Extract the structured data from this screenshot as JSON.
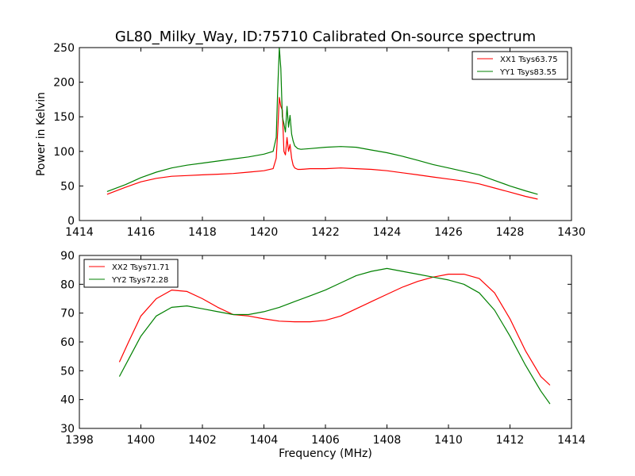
{
  "chart_data": [
    {
      "type": "line",
      "title": "GL80_Milky_Way, ID:75710 Calibrated On-source spectrum",
      "xlabel": "",
      "ylabel": "Power in Kelvin",
      "xlim": [
        1414,
        1430
      ],
      "ylim": [
        0,
        250
      ],
      "xticks": [
        "1414",
        "1416",
        "1418",
        "1420",
        "1422",
        "1424",
        "1426",
        "1428",
        "1430"
      ],
      "yticks": [
        "0",
        "50",
        "100",
        "150",
        "200",
        "250"
      ],
      "legend_position": "top-right",
      "series": [
        {
          "name": "XX1 Tsys63.75",
          "color": "#ff0000",
          "x": [
            1414.9,
            1415.5,
            1416.0,
            1416.5,
            1417.0,
            1417.5,
            1418.0,
            1418.5,
            1419.0,
            1419.5,
            1420.0,
            1420.3,
            1420.4,
            1420.45,
            1420.5,
            1420.55,
            1420.6,
            1420.65,
            1420.7,
            1420.75,
            1420.8,
            1420.85,
            1420.9,
            1420.95,
            1421.0,
            1421.1,
            1421.2,
            1421.5,
            1422.0,
            1422.5,
            1423.0,
            1423.5,
            1424.0,
            1424.5,
            1425.0,
            1425.5,
            1426.0,
            1426.5,
            1427.0,
            1427.5,
            1428.0,
            1428.5,
            1428.9
          ],
          "y": [
            38,
            48,
            56,
            61,
            64,
            65,
            66,
            67,
            68,
            70,
            72,
            75,
            90,
            130,
            178,
            165,
            160,
            100,
            95,
            120,
            100,
            110,
            90,
            80,
            76,
            74,
            74,
            75,
            75,
            76,
            75,
            74,
            72,
            69,
            66,
            63,
            60,
            57,
            53,
            47,
            41,
            35,
            31
          ]
        },
        {
          "name": "YY1 Tsys83.55",
          "color": "#008000",
          "x": [
            1414.9,
            1415.5,
            1416.0,
            1416.5,
            1417.0,
            1417.5,
            1418.0,
            1418.5,
            1419.0,
            1419.5,
            1420.0,
            1420.3,
            1420.4,
            1420.45,
            1420.5,
            1420.55,
            1420.6,
            1420.65,
            1420.7,
            1420.75,
            1420.8,
            1420.85,
            1420.9,
            1420.95,
            1421.0,
            1421.1,
            1421.2,
            1421.5,
            1422.0,
            1422.5,
            1423.0,
            1423.5,
            1424.0,
            1424.5,
            1425.0,
            1425.5,
            1426.0,
            1426.5,
            1427.0,
            1427.5,
            1428.0,
            1428.5,
            1428.9
          ],
          "y": [
            42,
            52,
            62,
            70,
            76,
            80,
            83,
            86,
            89,
            92,
            96,
            100,
            120,
            190,
            250,
            220,
            150,
            140,
            128,
            165,
            135,
            152,
            125,
            115,
            108,
            104,
            103,
            104,
            106,
            107,
            106,
            102,
            98,
            93,
            87,
            81,
            76,
            71,
            66,
            58,
            50,
            43,
            38
          ]
        }
      ]
    },
    {
      "type": "line",
      "title": "",
      "xlabel": "Frequency (MHz)",
      "ylabel": "",
      "xlim": [
        1398,
        1414
      ],
      "ylim": [
        30,
        90
      ],
      "xticks": [
        "1398",
        "1400",
        "1402",
        "1404",
        "1406",
        "1408",
        "1410",
        "1412",
        "1414"
      ],
      "yticks": [
        "30",
        "40",
        "50",
        "60",
        "70",
        "80",
        "90"
      ],
      "legend_position": "top-left",
      "series": [
        {
          "name": "XX2 Tsys71.71",
          "color": "#ff0000",
          "x": [
            1399.3,
            1399.6,
            1400.0,
            1400.5,
            1401.0,
            1401.5,
            1402.0,
            1402.5,
            1403.0,
            1403.5,
            1404.0,
            1404.5,
            1405.0,
            1405.5,
            1406.0,
            1406.5,
            1407.0,
            1407.5,
            1408.0,
            1408.5,
            1409.0,
            1409.5,
            1410.0,
            1410.5,
            1411.0,
            1411.5,
            1412.0,
            1412.5,
            1413.0,
            1413.3
          ],
          "y": [
            53,
            60,
            69,
            75,
            78,
            77.5,
            75,
            72,
            69.5,
            69,
            68,
            67.2,
            67,
            67,
            67.5,
            69,
            71.5,
            74,
            76.5,
            79,
            81,
            82.5,
            83.5,
            83.5,
            82,
            77,
            68,
            57,
            48,
            45
          ]
        },
        {
          "name": "YY2 Tsys72.28",
          "color": "#008000",
          "x": [
            1399.3,
            1399.6,
            1400.0,
            1400.5,
            1401.0,
            1401.5,
            1402.0,
            1402.5,
            1403.0,
            1403.5,
            1404.0,
            1404.5,
            1405.0,
            1405.5,
            1406.0,
            1406.5,
            1407.0,
            1407.5,
            1408.0,
            1408.5,
            1409.0,
            1409.5,
            1410.0,
            1410.5,
            1411.0,
            1411.5,
            1412.0,
            1412.5,
            1413.0,
            1413.3
          ],
          "y": [
            48,
            54,
            62,
            69,
            72,
            72.5,
            71.5,
            70.5,
            69.5,
            69.5,
            70.5,
            72,
            74,
            76,
            78,
            80.5,
            83,
            84.5,
            85.5,
            84.5,
            83.5,
            82.5,
            81.5,
            80,
            77,
            71,
            62,
            52,
            43,
            38.5
          ]
        }
      ]
    }
  ]
}
